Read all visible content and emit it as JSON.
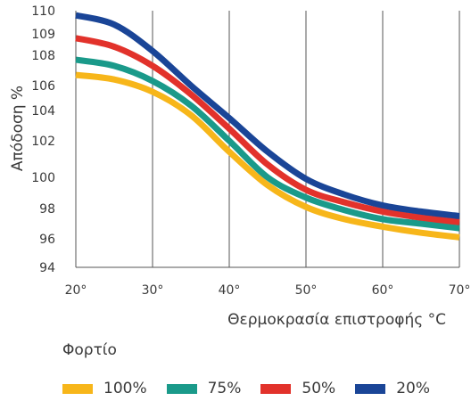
{
  "chart_data": {
    "type": "line",
    "title": "",
    "xlabel": "Θερμοκρασία επιστροφής °C",
    "ylabel": "Απόδοση %",
    "xlim": [
      20,
      70
    ],
    "ylim": [
      94,
      110
    ],
    "x_ticks": [
      "20°",
      "30°",
      "40°",
      "50°",
      "60°",
      "70°"
    ],
    "x_tick_values": [
      20,
      30,
      40,
      50,
      60,
      70
    ],
    "y_tick_values": [
      94,
      96,
      98,
      100,
      102,
      104,
      106,
      108,
      109,
      110
    ],
    "grid": {
      "vertical": true,
      "horizontal": false
    },
    "legend": {
      "title": "Φορτίο",
      "placement": "bottom"
    },
    "series": [
      {
        "name": "100%",
        "color": "#f7b61a",
        "x": [
          20,
          25,
          30,
          35,
          40,
          45,
          50,
          55,
          60,
          65,
          70
        ],
        "y": [
          106.7,
          106.4,
          105.5,
          103.7,
          101.4,
          99.5,
          98.1,
          97.3,
          96.8,
          96.4,
          96.1
        ]
      },
      {
        "name": "75%",
        "color": "#1a9a8a",
        "x": [
          20,
          25,
          30,
          35,
          40,
          45,
          50,
          55,
          60,
          65,
          70
        ],
        "y": [
          107.7,
          107.3,
          106.3,
          104.4,
          102.0,
          100.0,
          98.7,
          97.9,
          97.3,
          97.0,
          96.7
        ]
      },
      {
        "name": "50%",
        "color": "#e2322b",
        "x": [
          20,
          25,
          30,
          35,
          40,
          45,
          50,
          55,
          60,
          65,
          70
        ],
        "y": [
          108.8,
          108.4,
          107.3,
          105.3,
          102.8,
          100.7,
          99.2,
          98.4,
          97.8,
          97.4,
          97.1
        ]
      },
      {
        "name": "20%",
        "color": "#1a4597",
        "x": [
          20,
          25,
          30,
          35,
          40,
          45,
          50,
          55,
          60,
          65,
          70
        ],
        "y": [
          109.8,
          109.4,
          108.2,
          106.0,
          103.5,
          101.4,
          99.9,
          98.9,
          98.2,
          97.8,
          97.5
        ]
      }
    ]
  }
}
